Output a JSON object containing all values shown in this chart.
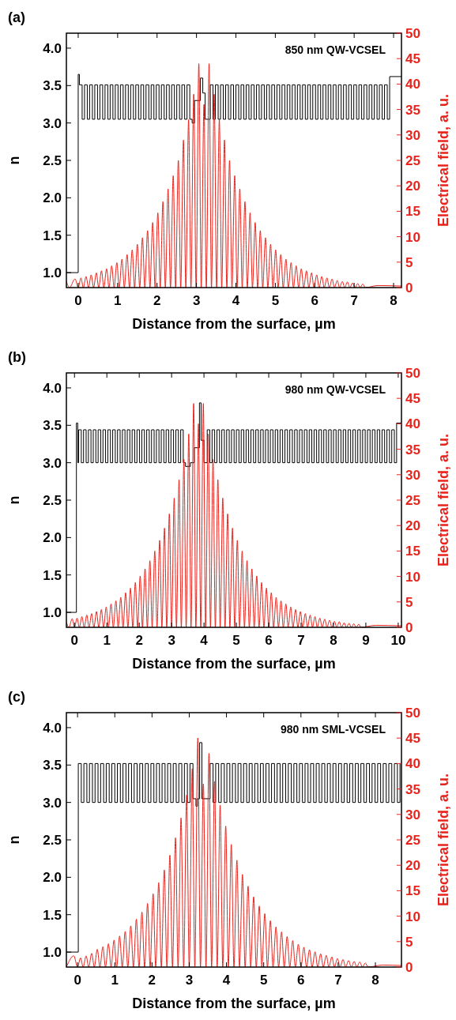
{
  "chart_data": [
    {
      "type": "line",
      "title": "(a)",
      "annotations": [
        "850 nm QW-VCSEL"
      ],
      "xlabel": "Distance from the surface, µm",
      "ylabel": "n",
      "y2label": "Electrical field, a. u.",
      "xlim": [
        -0.3,
        8.2
      ],
      "xticks": [
        0,
        1,
        2,
        3,
        4,
        5,
        6,
        7,
        8
      ],
      "ylim": [
        0.8,
        4.2
      ],
      "yticks": [
        {
          "value": 1,
          "label": "1.0"
        },
        1.5,
        {
          "value": 2,
          "label": "2.0"
        },
        2.5,
        {
          "value": 3,
          "label": "3.0"
        },
        3.5,
        {
          "value": 4,
          "label": "4.0"
        }
      ],
      "y2lim": [
        0,
        50
      ],
      "y2ticks": [
        0,
        5,
        10,
        15,
        20,
        25,
        30,
        35,
        40,
        45,
        50
      ],
      "series": [
        {
          "type": "step",
          "color": "#000000",
          "x": [
            -0.3,
            0,
            0.03,
            0.1,
            0.16,
            0.23,
            0.29,
            0.36,
            0.42,
            0.49,
            0.55,
            0.62,
            0.68,
            0.75,
            0.81,
            0.88,
            0.94,
            1.01,
            1.07,
            1.14,
            1.2,
            1.27,
            1.33,
            1.4,
            1.46,
            1.53,
            1.59,
            1.66,
            1.72,
            1.79,
            1.85,
            1.92,
            1.98,
            2.05,
            2.11,
            2.18,
            2.24,
            2.31,
            2.37,
            2.44,
            2.5,
            2.57,
            2.63,
            2.7,
            2.76,
            2.83,
            2.89,
            2.95,
            3.1,
            3.16,
            3.22,
            3.35,
            3.42,
            3.48,
            3.55,
            3.61,
            3.68,
            3.74,
            3.81,
            3.87,
            3.94,
            4,
            4.07,
            4.13,
            4.2,
            4.26,
            4.33,
            4.39,
            4.46,
            4.52,
            4.59,
            4.65,
            4.72,
            4.78,
            4.85,
            4.91,
            4.98,
            5.04,
            5.11,
            5.17,
            5.24,
            5.3,
            5.37,
            5.43,
            5.5,
            5.56,
            5.63,
            5.69,
            5.76,
            5.82,
            5.89,
            5.95,
            6.02,
            6.08,
            6.15,
            6.21,
            6.28,
            6.34,
            6.41,
            6.47,
            6.54,
            6.6,
            6.67,
            6.73,
            6.8,
            6.86,
            6.93,
            6.99,
            7.06,
            7.12,
            7.19,
            7.25,
            7.32,
            7.38,
            7.45,
            7.51,
            7.58,
            7.64,
            7.71,
            7.77,
            7.84,
            7.9,
            8.2
          ],
          "values": [
            1,
            3.65,
            3.51,
            3.05,
            3.51,
            3.05,
            3.51,
            3.05,
            3.51,
            3.05,
            3.51,
            3.05,
            3.51,
            3.05,
            3.51,
            3.05,
            3.51,
            3.05,
            3.51,
            3.05,
            3.51,
            3.05,
            3.51,
            3.05,
            3.51,
            3.05,
            3.51,
            3.05,
            3.51,
            3.05,
            3.51,
            3.05,
            3.51,
            3.05,
            3.51,
            3.05,
            3.51,
            3.05,
            3.51,
            3.05,
            3.51,
            3.05,
            3.51,
            3.05,
            3.51,
            3.05,
            3,
            3.3,
            3.6,
            3.4,
            3.05,
            3.51,
            3.05,
            3.51,
            3.05,
            3.51,
            3.05,
            3.51,
            3.05,
            3.51,
            3.05,
            3.51,
            3.05,
            3.51,
            3.05,
            3.51,
            3.05,
            3.51,
            3.05,
            3.51,
            3.05,
            3.51,
            3.05,
            3.51,
            3.05,
            3.51,
            3.05,
            3.51,
            3.05,
            3.51,
            3.05,
            3.51,
            3.05,
            3.51,
            3.05,
            3.51,
            3.05,
            3.51,
            3.05,
            3.51,
            3.05,
            3.51,
            3.05,
            3.51,
            3.05,
            3.51,
            3.05,
            3.51,
            3.05,
            3.51,
            3.05,
            3.51,
            3.05,
            3.51,
            3.05,
            3.51,
            3.05,
            3.51,
            3.05,
            3.51,
            3.05,
            3.51,
            3.05,
            3.51,
            3.05,
            3.51,
            3.05,
            3.51,
            3.05,
            3.51,
            3.05,
            3.62,
            3.62
          ]
        },
        {
          "type": "line",
          "axis": "y2",
          "color": "#e8231c",
          "x": [
            -0.3,
            -0.22,
            -0.08,
            0,
            0.07,
            0.13,
            0.2,
            0.26,
            0.33,
            0.39,
            0.46,
            0.52,
            0.59,
            0.65,
            0.72,
            0.78,
            0.85,
            0.91,
            0.98,
            1.04,
            1.11,
            1.17,
            1.24,
            1.3,
            1.37,
            1.43,
            1.5,
            1.56,
            1.63,
            1.69,
            1.76,
            1.82,
            1.89,
            1.95,
            2.02,
            2.08,
            2.15,
            2.21,
            2.28,
            2.34,
            2.41,
            2.47,
            2.54,
            2.6,
            2.67,
            2.73,
            2.8,
            2.86,
            2.93,
            2.99,
            3.06,
            3.12,
            3.19,
            3.25,
            3.32,
            3.38,
            3.45,
            3.51,
            3.58,
            3.64,
            3.71,
            3.77,
            3.84,
            3.9,
            3.97,
            4.03,
            4.1,
            4.16,
            4.23,
            4.29,
            4.36,
            4.42,
            4.49,
            4.55,
            4.62,
            4.68,
            4.75,
            4.81,
            4.88,
            4.94,
            5.01,
            5.07,
            5.14,
            5.2,
            5.27,
            5.33,
            5.4,
            5.46,
            5.53,
            5.59,
            5.66,
            5.72,
            5.79,
            5.85,
            5.92,
            5.98,
            6.05,
            6.11,
            6.18,
            6.24,
            6.31,
            6.37,
            6.44,
            6.5,
            6.57,
            6.63,
            6.7,
            6.76,
            6.83,
            6.89,
            6.96,
            7.02,
            7.09,
            7.15,
            7.22,
            7.28,
            7.6,
            8.2
          ],
          "values": [
            1.2,
            0,
            1.7,
            0,
            1.9,
            0,
            2.2,
            0,
            2.5,
            0,
            2.9,
            0,
            3.3,
            0,
            3.7,
            0,
            4.3,
            0,
            4.9,
            0,
            5.6,
            0,
            6.5,
            0,
            7.4,
            0,
            8.5,
            0,
            9.8,
            0,
            11.2,
            0,
            12.8,
            0,
            14.7,
            0,
            16.9,
            0,
            19.4,
            0,
            22,
            0,
            25,
            0,
            29,
            0,
            33,
            0,
            38,
            0,
            44,
            0,
            36,
            0,
            44,
            0,
            38,
            0,
            33,
            0,
            29,
            0,
            25,
            0,
            22,
            0,
            19.4,
            0,
            16.9,
            0,
            14.7,
            0,
            12.8,
            0,
            11.2,
            0,
            9.8,
            0,
            8.5,
            0,
            7.4,
            0,
            6.5,
            0,
            5.6,
            0,
            4.9,
            0,
            4.3,
            0,
            3.7,
            0,
            3.3,
            0,
            2.9,
            0,
            2.5,
            0,
            2.2,
            0,
            1.9,
            0,
            1.7,
            0,
            1.4,
            0,
            1.2,
            0,
            1.1,
            0,
            0.9,
            0,
            0.8,
            0,
            0.7,
            0,
            0.4,
            0.3
          ]
        }
      ]
    },
    {
      "type": "line",
      "title": "(b)",
      "annotations": [
        "980 nm QW-VCSEL"
      ],
      "xlabel": "Distance from the surface, µm",
      "ylabel": "n",
      "y2label": "Electrical field, a. u.",
      "xlim": [
        -0.25,
        10.1
      ],
      "xticks": [
        0,
        1,
        2,
        3,
        4,
        5,
        6,
        7,
        8,
        9,
        10
      ],
      "ylim": [
        0.8,
        4.2
      ],
      "yticks": [
        {
          "value": 1,
          "label": "1.0"
        },
        1.5,
        {
          "value": 2,
          "label": "2.0"
        },
        2.5,
        {
          "value": 3,
          "label": "3.0"
        },
        3.5,
        {
          "value": 4,
          "label": "4.0"
        }
      ],
      "y2lim": [
        0,
        50
      ],
      "y2ticks": [
        0,
        5,
        10,
        15,
        20,
        25,
        30,
        35,
        40,
        45,
        50
      ],
      "series": [
        {
          "type": "step",
          "color": "#000000",
          "x": [
            -0.25,
            0.06,
            0.1,
            0.13,
            0.21,
            0.28,
            0.36,
            0.43,
            0.51,
            0.58,
            0.66,
            0.73,
            0.81,
            0.88,
            0.96,
            1.03,
            1.11,
            1.18,
            1.26,
            1.33,
            1.41,
            1.48,
            1.56,
            1.63,
            1.71,
            1.78,
            1.86,
            1.93,
            2.01,
            2.08,
            2.16,
            2.23,
            2.31,
            2.38,
            2.46,
            2.53,
            2.61,
            2.68,
            2.76,
            2.83,
            2.91,
            2.98,
            3.06,
            3.13,
            3.21,
            3.28,
            3.36,
            3.43,
            3.58,
            3.7,
            3.86,
            3.91,
            4,
            4.1,
            4.18,
            4.25,
            4.33,
            4.4,
            4.48,
            4.55,
            4.63,
            4.7,
            4.78,
            4.85,
            4.93,
            5,
            5.08,
            5.15,
            5.23,
            5.3,
            5.38,
            5.45,
            5.53,
            5.6,
            5.68,
            5.75,
            5.83,
            5.9,
            5.98,
            6.05,
            6.13,
            6.2,
            6.28,
            6.35,
            6.43,
            6.5,
            6.58,
            6.65,
            6.73,
            6.8,
            6.88,
            6.95,
            7.03,
            7.1,
            7.18,
            7.25,
            7.33,
            7.4,
            7.48,
            7.55,
            7.63,
            7.7,
            7.78,
            7.85,
            7.93,
            8,
            8.08,
            8.15,
            8.23,
            8.3,
            8.38,
            8.45,
            8.53,
            8.6,
            8.68,
            8.75,
            8.83,
            8.9,
            8.98,
            9.05,
            9.13,
            9.2,
            9.28,
            9.35,
            9.43,
            9.5,
            9.58,
            9.65,
            9.73,
            9.8,
            9.88,
            9.95,
            10.1
          ],
          "values": [
            1,
            3.53,
            3,
            3.44,
            3,
            3.44,
            3,
            3.44,
            3,
            3.44,
            3,
            3.44,
            3,
            3.44,
            3,
            3.44,
            3,
            3.44,
            3,
            3.44,
            3,
            3.44,
            3,
            3.44,
            3,
            3.44,
            3,
            3.44,
            3,
            3.44,
            3,
            3.44,
            3,
            3.44,
            3,
            3.44,
            3,
            3.44,
            3,
            3.44,
            3,
            3.44,
            3,
            3.44,
            3,
            3.44,
            3,
            2.95,
            3,
            3.2,
            3.8,
            3.3,
            3,
            3.44,
            3,
            3.44,
            3,
            3.44,
            3,
            3.44,
            3,
            3.44,
            3,
            3.44,
            3,
            3.44,
            3,
            3.44,
            3,
            3.44,
            3,
            3.44,
            3,
            3.44,
            3,
            3.44,
            3,
            3.44,
            3,
            3.44,
            3,
            3.44,
            3,
            3.44,
            3,
            3.44,
            3,
            3.44,
            3,
            3.44,
            3,
            3.44,
            3,
            3.44,
            3,
            3.44,
            3,
            3.44,
            3,
            3.44,
            3,
            3.44,
            3,
            3.44,
            3,
            3.44,
            3,
            3.44,
            3,
            3.44,
            3,
            3.44,
            3,
            3.44,
            3,
            3.44,
            3,
            3.44,
            3,
            3.44,
            3,
            3.44,
            3,
            3.44,
            3,
            3.44,
            3,
            3.44,
            3,
            3.44,
            3,
            3.53,
            3.53
          ]
        },
        {
          "type": "line",
          "axis": "y2",
          "color": "#e8231c",
          "x": [
            -0.25,
            -0.17,
            -0.07,
            0,
            0.08,
            0.15,
            0.23,
            0.3,
            0.38,
            0.45,
            0.53,
            0.6,
            0.68,
            0.75,
            0.83,
            0.9,
            0.98,
            1.05,
            1.13,
            1.2,
            1.28,
            1.35,
            1.43,
            1.5,
            1.58,
            1.65,
            1.73,
            1.8,
            1.88,
            1.95,
            2.03,
            2.1,
            2.18,
            2.25,
            2.33,
            2.4,
            2.48,
            2.55,
            2.63,
            2.7,
            2.78,
            2.85,
            2.93,
            3,
            3.08,
            3.15,
            3.23,
            3.3,
            3.38,
            3.45,
            3.53,
            3.6,
            3.68,
            3.75,
            3.83,
            3.9,
            3.98,
            4.05,
            4.13,
            4.2,
            4.28,
            4.35,
            4.43,
            4.5,
            4.58,
            4.65,
            4.73,
            4.8,
            4.88,
            4.95,
            5.03,
            5.1,
            5.18,
            5.25,
            5.33,
            5.4,
            5.48,
            5.55,
            5.63,
            5.7,
            5.78,
            5.85,
            5.93,
            6,
            6.08,
            6.15,
            6.23,
            6.3,
            6.38,
            6.45,
            6.53,
            6.6,
            6.68,
            6.75,
            6.83,
            6.9,
            6.98,
            7.05,
            7.13,
            7.2,
            7.28,
            7.35,
            7.43,
            7.5,
            7.58,
            7.65,
            7.73,
            7.8,
            7.88,
            7.95,
            8.03,
            8.1,
            8.18,
            8.25,
            8.33,
            8.4,
            8.48,
            8.55,
            8.63,
            8.7,
            8.78,
            8.85,
            9.3,
            10.1
          ],
          "values": [
            1,
            0,
            1.7,
            0,
            1.8,
            0,
            2.1,
            0,
            2.4,
            0,
            2.7,
            0,
            3.1,
            0,
            3.5,
            0,
            4,
            0,
            4.6,
            0,
            5.2,
            0,
            5.9,
            0,
            6.8,
            0,
            7.7,
            0,
            8.8,
            0,
            10.1,
            0,
            11.5,
            0,
            13.1,
            0,
            15,
            0,
            17.1,
            0,
            19.5,
            0,
            22.3,
            0,
            25.4,
            0,
            29,
            0,
            33,
            0,
            38,
            0,
            44,
            0,
            40,
            0,
            44,
            0,
            38,
            0,
            33,
            0,
            29,
            0,
            25.4,
            0,
            22.3,
            0,
            19.5,
            0,
            17.1,
            0,
            15,
            0,
            13.1,
            0,
            11.5,
            0,
            10.1,
            0,
            8.8,
            0,
            7.7,
            0,
            6.8,
            0,
            5.9,
            0,
            5.2,
            0,
            4.6,
            0,
            4,
            0,
            3.5,
            0,
            3.1,
            0,
            2.7,
            0,
            2.4,
            0,
            2.1,
            0,
            1.8,
            0,
            1.6,
            0,
            1.4,
            0,
            1.2,
            0,
            1.1,
            0,
            0.9,
            0,
            0.8,
            0,
            0.7,
            0,
            0.6,
            0,
            0.4,
            0.3
          ]
        }
      ]
    },
    {
      "type": "line",
      "title": "(c)",
      "annotations": [
        "980 nm SML-VCSEL"
      ],
      "xlabel": "Distance from the surface, µm",
      "ylabel": "n",
      "y2label": "Electrical field, a. u.",
      "xlim": [
        -0.3,
        8.7
      ],
      "xticks": [
        0,
        1,
        2,
        3,
        4,
        5,
        6,
        7,
        8
      ],
      "ylim": [
        0.8,
        4.2
      ],
      "yticks": [
        {
          "value": 1,
          "label": "1.0"
        },
        1.5,
        {
          "value": 2,
          "label": "2.0"
        },
        2.5,
        {
          "value": 3,
          "label": "3.0"
        },
        3.5,
        {
          "value": 4,
          "label": "4.0"
        }
      ],
      "y2lim": [
        0,
        50
      ],
      "y2ticks": [
        0,
        5,
        10,
        15,
        20,
        25,
        30,
        35,
        40,
        45,
        50
      ],
      "series": [
        {
          "type": "step",
          "color": "#000000",
          "x": [
            -0.3,
            0.02,
            0.1,
            0.17,
            0.25,
            0.32,
            0.4,
            0.47,
            0.55,
            0.62,
            0.7,
            0.77,
            0.85,
            0.92,
            1,
            1.07,
            1.15,
            1.22,
            1.3,
            1.37,
            1.45,
            1.52,
            1.6,
            1.67,
            1.75,
            1.82,
            1.9,
            1.97,
            2.05,
            2.12,
            2.2,
            2.27,
            2.35,
            2.42,
            2.5,
            2.57,
            2.65,
            2.72,
            2.8,
            2.87,
            2.95,
            3.02,
            3.1,
            3.18,
            3.22,
            3.28,
            3.34,
            3.56,
            3.64,
            3.71,
            3.79,
            3.86,
            3.94,
            4.01,
            4.09,
            4.16,
            4.24,
            4.31,
            4.39,
            4.46,
            4.54,
            4.61,
            4.69,
            4.76,
            4.84,
            4.91,
            4.99,
            5.06,
            5.14,
            5.21,
            5.29,
            5.36,
            5.44,
            5.51,
            5.59,
            5.66,
            5.74,
            5.81,
            5.89,
            5.96,
            6.04,
            6.11,
            6.19,
            6.26,
            6.34,
            6.41,
            6.49,
            6.56,
            6.64,
            6.71,
            6.79,
            6.86,
            6.94,
            7.01,
            7.09,
            7.16,
            7.24,
            7.31,
            7.39,
            7.46,
            7.54,
            7.61,
            7.69,
            7.76,
            7.84,
            7.91,
            7.99,
            8.06,
            8.14,
            8.21,
            8.29,
            8.36,
            8.44,
            8.51,
            8.59,
            8.66,
            8.7
          ],
          "values": [
            1,
            3.52,
            3,
            3.52,
            3,
            3.52,
            3,
            3.52,
            3,
            3.52,
            3,
            3.52,
            3,
            3.52,
            3,
            3.52,
            3,
            3.52,
            3,
            3.52,
            3,
            3.52,
            3,
            3.52,
            3,
            3.52,
            3,
            3.52,
            3,
            3.52,
            3,
            3.52,
            3,
            3.52,
            3,
            3.52,
            3,
            3.52,
            3,
            3.52,
            3,
            3.52,
            3.05,
            2.95,
            3.05,
            3.8,
            3.05,
            3.52,
            3,
            3.52,
            3,
            3.52,
            3,
            3.52,
            3,
            3.52,
            3,
            3.52,
            3,
            3.52,
            3,
            3.52,
            3,
            3.52,
            3,
            3.52,
            3,
            3.52,
            3,
            3.52,
            3,
            3.52,
            3,
            3.52,
            3,
            3.52,
            3,
            3.52,
            3,
            3.52,
            3,
            3.52,
            3,
            3.52,
            3,
            3.52,
            3,
            3.52,
            3,
            3.52,
            3,
            3.52,
            3,
            3.52,
            3,
            3.52,
            3,
            3.52,
            3,
            3.52,
            3,
            3.52,
            3,
            3.52,
            3,
            3.52,
            3,
            3.52,
            3,
            3.52,
            3,
            3.52,
            3,
            3.52,
            3,
            3.52,
            3.52
          ]
        },
        {
          "type": "line",
          "axis": "y2",
          "color": "#e8231c",
          "x": [
            -0.3,
            -0.1,
            0,
            0.08,
            0.15,
            0.23,
            0.3,
            0.38,
            0.45,
            0.53,
            0.6,
            0.68,
            0.75,
            0.83,
            0.9,
            0.98,
            1.05,
            1.13,
            1.2,
            1.28,
            1.35,
            1.43,
            1.5,
            1.58,
            1.65,
            1.73,
            1.8,
            1.88,
            1.95,
            2.03,
            2.1,
            2.18,
            2.25,
            2.33,
            2.4,
            2.48,
            2.55,
            2.63,
            2.7,
            2.78,
            2.85,
            2.93,
            3,
            3.08,
            3.15,
            3.23,
            3.3,
            3.38,
            3.45,
            3.53,
            3.6,
            3.68,
            3.75,
            3.83,
            3.9,
            3.98,
            4.05,
            4.13,
            4.2,
            4.28,
            4.35,
            4.43,
            4.5,
            4.58,
            4.65,
            4.73,
            4.8,
            4.88,
            4.95,
            5.03,
            5.1,
            5.18,
            5.25,
            5.33,
            5.4,
            5.48,
            5.55,
            5.63,
            5.7,
            5.78,
            5.85,
            5.93,
            6,
            6.08,
            6.15,
            6.23,
            6.3,
            6.38,
            6.45,
            6.53,
            6.6,
            6.68,
            6.75,
            6.83,
            6.9,
            6.98,
            7.05,
            7.13,
            7.2,
            7.28,
            7.35,
            7.43,
            7.5,
            7.58,
            7.65,
            7.73,
            7.8,
            8.2,
            8.7
          ],
          "values": [
            0,
            2.2,
            0,
            1.8,
            0,
            2.2,
            0,
            2.7,
            0,
            3.5,
            0,
            4,
            0,
            4.6,
            0,
            5.3,
            0,
            6.1,
            0,
            7,
            0,
            8.1,
            0,
            9.4,
            0,
            10.8,
            0,
            12.5,
            0,
            14.4,
            0,
            16.6,
            0,
            19.1,
            0,
            22,
            0,
            25.4,
            0,
            29.3,
            0,
            33.8,
            0,
            39,
            0,
            45,
            0,
            36,
            0,
            42,
            0,
            36.5,
            0,
            31.8,
            0,
            27.7,
            0,
            24.1,
            0,
            21,
            0,
            18.2,
            0,
            15.9,
            0,
            13.8,
            0,
            12,
            0,
            10.5,
            0,
            9.1,
            0,
            7.9,
            0,
            6.9,
            0,
            6,
            0,
            5.2,
            0,
            4.5,
            0,
            3.9,
            0,
            3.4,
            0,
            3,
            0,
            2.6,
            0,
            2.3,
            0,
            2,
            0,
            1.7,
            0,
            1.5,
            0,
            1.3,
            0,
            1.1,
            0,
            1,
            0,
            0.8,
            0,
            0.4,
            0.3
          ]
        }
      ]
    }
  ]
}
